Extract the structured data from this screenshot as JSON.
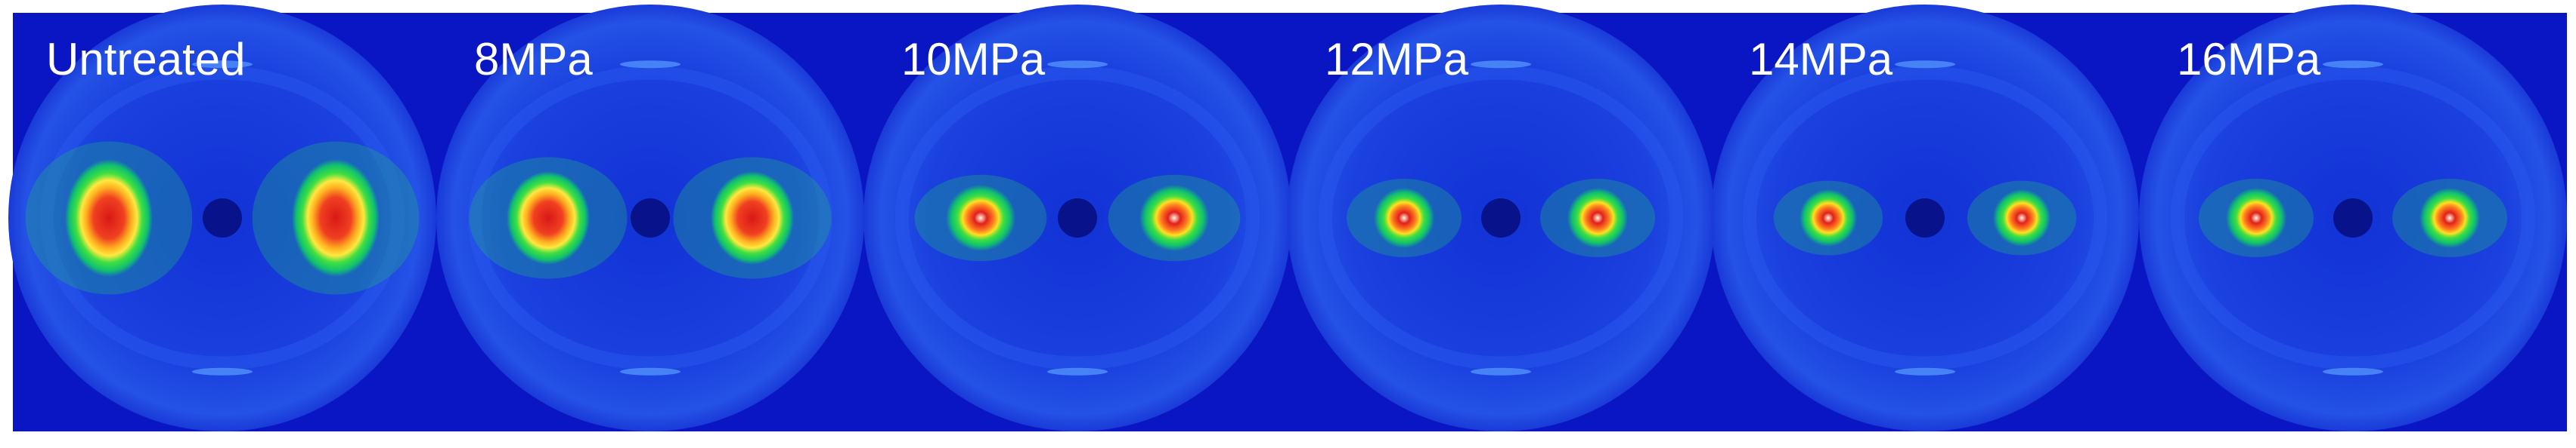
{
  "panels": [
    {
      "label": "Untreated"
    },
    {
      "label": "8MPa"
    },
    {
      "label": "10MPa"
    },
    {
      "label": "12MPa"
    },
    {
      "label": "14MPa"
    },
    {
      "label": "16MPa"
    }
  ]
}
